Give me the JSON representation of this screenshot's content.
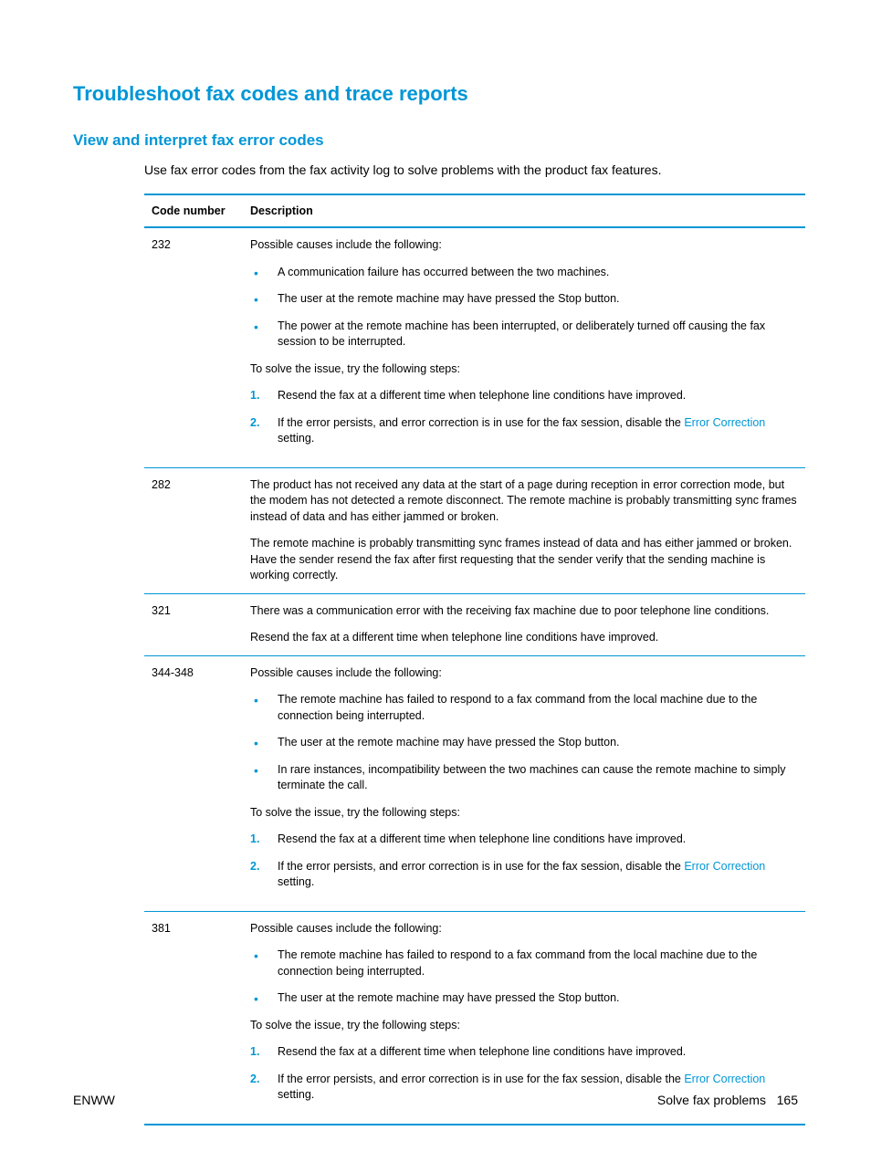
{
  "h1": "Troubleshoot fax codes and trace reports",
  "h2": "View and interpret fax error codes",
  "intro": "Use fax error codes from the fax activity log to solve problems with the product fax features.",
  "table": {
    "headers": {
      "code": "Code number",
      "desc": "Description"
    },
    "rows": [
      {
        "code": "232",
        "causes_intro": "Possible causes include the following:",
        "causes": [
          "A communication failure has occurred between the two machines.",
          "The user at the remote machine may have pressed the Stop button.",
          "The power at the remote machine has been interrupted, or deliberately turned off causing the fax session to be interrupted."
        ],
        "solve_intro": "To solve the issue, try the following steps:",
        "steps": [
          {
            "text": "Resend the fax at a different time when telephone line conditions have improved."
          },
          {
            "prefix": "If the error persists, and error correction is in use for the fax session, disable the ",
            "link": "Error Correction",
            "suffix": " setting."
          }
        ]
      },
      {
        "code": "282",
        "para1": "The product has not received any data at the start of a page during reception in error correction mode, but the modem has not detected a remote disconnect. The remote machine is probably transmitting sync frames instead of data and has either jammed or broken.",
        "para2": "The remote machine is probably transmitting sync frames instead of data and has either jammed or broken. Have the sender resend the fax after first requesting that the sender verify that the sending machine is working correctly."
      },
      {
        "code": "321",
        "para1": "There was a communication error with the receiving fax machine due to poor telephone line conditions.",
        "para2": "Resend the fax at a different time when telephone line conditions have improved."
      },
      {
        "code": "344-348",
        "causes_intro": "Possible causes include the following:",
        "causes": [
          "The remote machine has failed to respond to a fax command from the local machine due to the connection being interrupted.",
          "The user at the remote machine may have pressed the Stop button.",
          "In rare instances, incompatibility between the two machines can cause the remote machine to simply terminate the call."
        ],
        "solve_intro": "To solve the issue, try the following steps:",
        "steps": [
          {
            "text": "Resend the fax at a different time when telephone line conditions have improved."
          },
          {
            "prefix": "If the error persists, and error correction is in use for the fax session, disable the ",
            "link": "Error Correction",
            "suffix": " setting."
          }
        ]
      },
      {
        "code": "381",
        "causes_intro": "Possible causes include the following:",
        "causes": [
          "The remote machine has failed to respond to a fax command from the local machine due to the connection being interrupted.",
          "The user at the remote machine may have pressed the Stop button."
        ],
        "solve_intro": "To solve the issue, try the following steps:",
        "steps": [
          {
            "text": "Resend the fax at a different time when telephone line conditions have improved."
          },
          {
            "prefix": "If the error persists, and error correction is in use for the fax session, disable the ",
            "link": "Error Correction",
            "suffix": " setting."
          }
        ]
      }
    ]
  },
  "footer": {
    "left": "ENWW",
    "right_label": "Solve fax problems",
    "right_page": "165"
  }
}
